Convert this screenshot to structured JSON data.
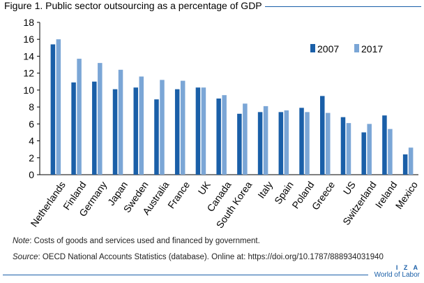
{
  "header": {
    "title": "Figure 1. Public sector outsourcing as a percentage of GDP"
  },
  "footer": {
    "note_label": "Note",
    "note_text": ": Costs of goods and services used and financed by government.",
    "source_label": "Source",
    "source_text": ": OECD National Accounts Statistics (database). Online at: https://doi.org/10.1787/888934031940",
    "brand": "I Z A",
    "brand_sub": "World of Labor"
  },
  "colors": {
    "series_2007": "#1a5fa8",
    "series_2017": "#7ba6d6",
    "frame": "#1a5fa8"
  },
  "chart_data": {
    "type": "bar",
    "title": "Figure 1. Public sector outsourcing as a percentage of GDP",
    "xlabel": "",
    "ylabel": "",
    "ylim": [
      0,
      18
    ],
    "yticks": [
      0,
      2,
      4,
      6,
      8,
      10,
      12,
      14,
      16,
      18
    ],
    "grid": false,
    "legend_position": "top-right",
    "categories": [
      "Netherlands",
      "Finland",
      "Germany",
      "Japan",
      "Sweden",
      "Australia",
      "France",
      "UK",
      "Canada",
      "South Korea",
      "Italy",
      "Spain",
      "Poland",
      "Greece",
      "US",
      "Switzerland",
      "Ireland",
      "Mexico"
    ],
    "series": [
      {
        "name": "2007",
        "values": [
          15.4,
          10.9,
          11.0,
          10.1,
          10.3,
          8.9,
          10.1,
          10.3,
          9.0,
          7.2,
          7.4,
          7.4,
          7.9,
          9.3,
          6.8,
          5.0,
          7.0,
          2.4
        ]
      },
      {
        "name": "2017",
        "values": [
          16.0,
          13.7,
          13.2,
          12.4,
          11.6,
          11.2,
          11.1,
          10.3,
          9.4,
          8.4,
          8.1,
          7.6,
          7.4,
          7.3,
          6.1,
          6.0,
          5.4,
          3.2
        ]
      }
    ]
  }
}
